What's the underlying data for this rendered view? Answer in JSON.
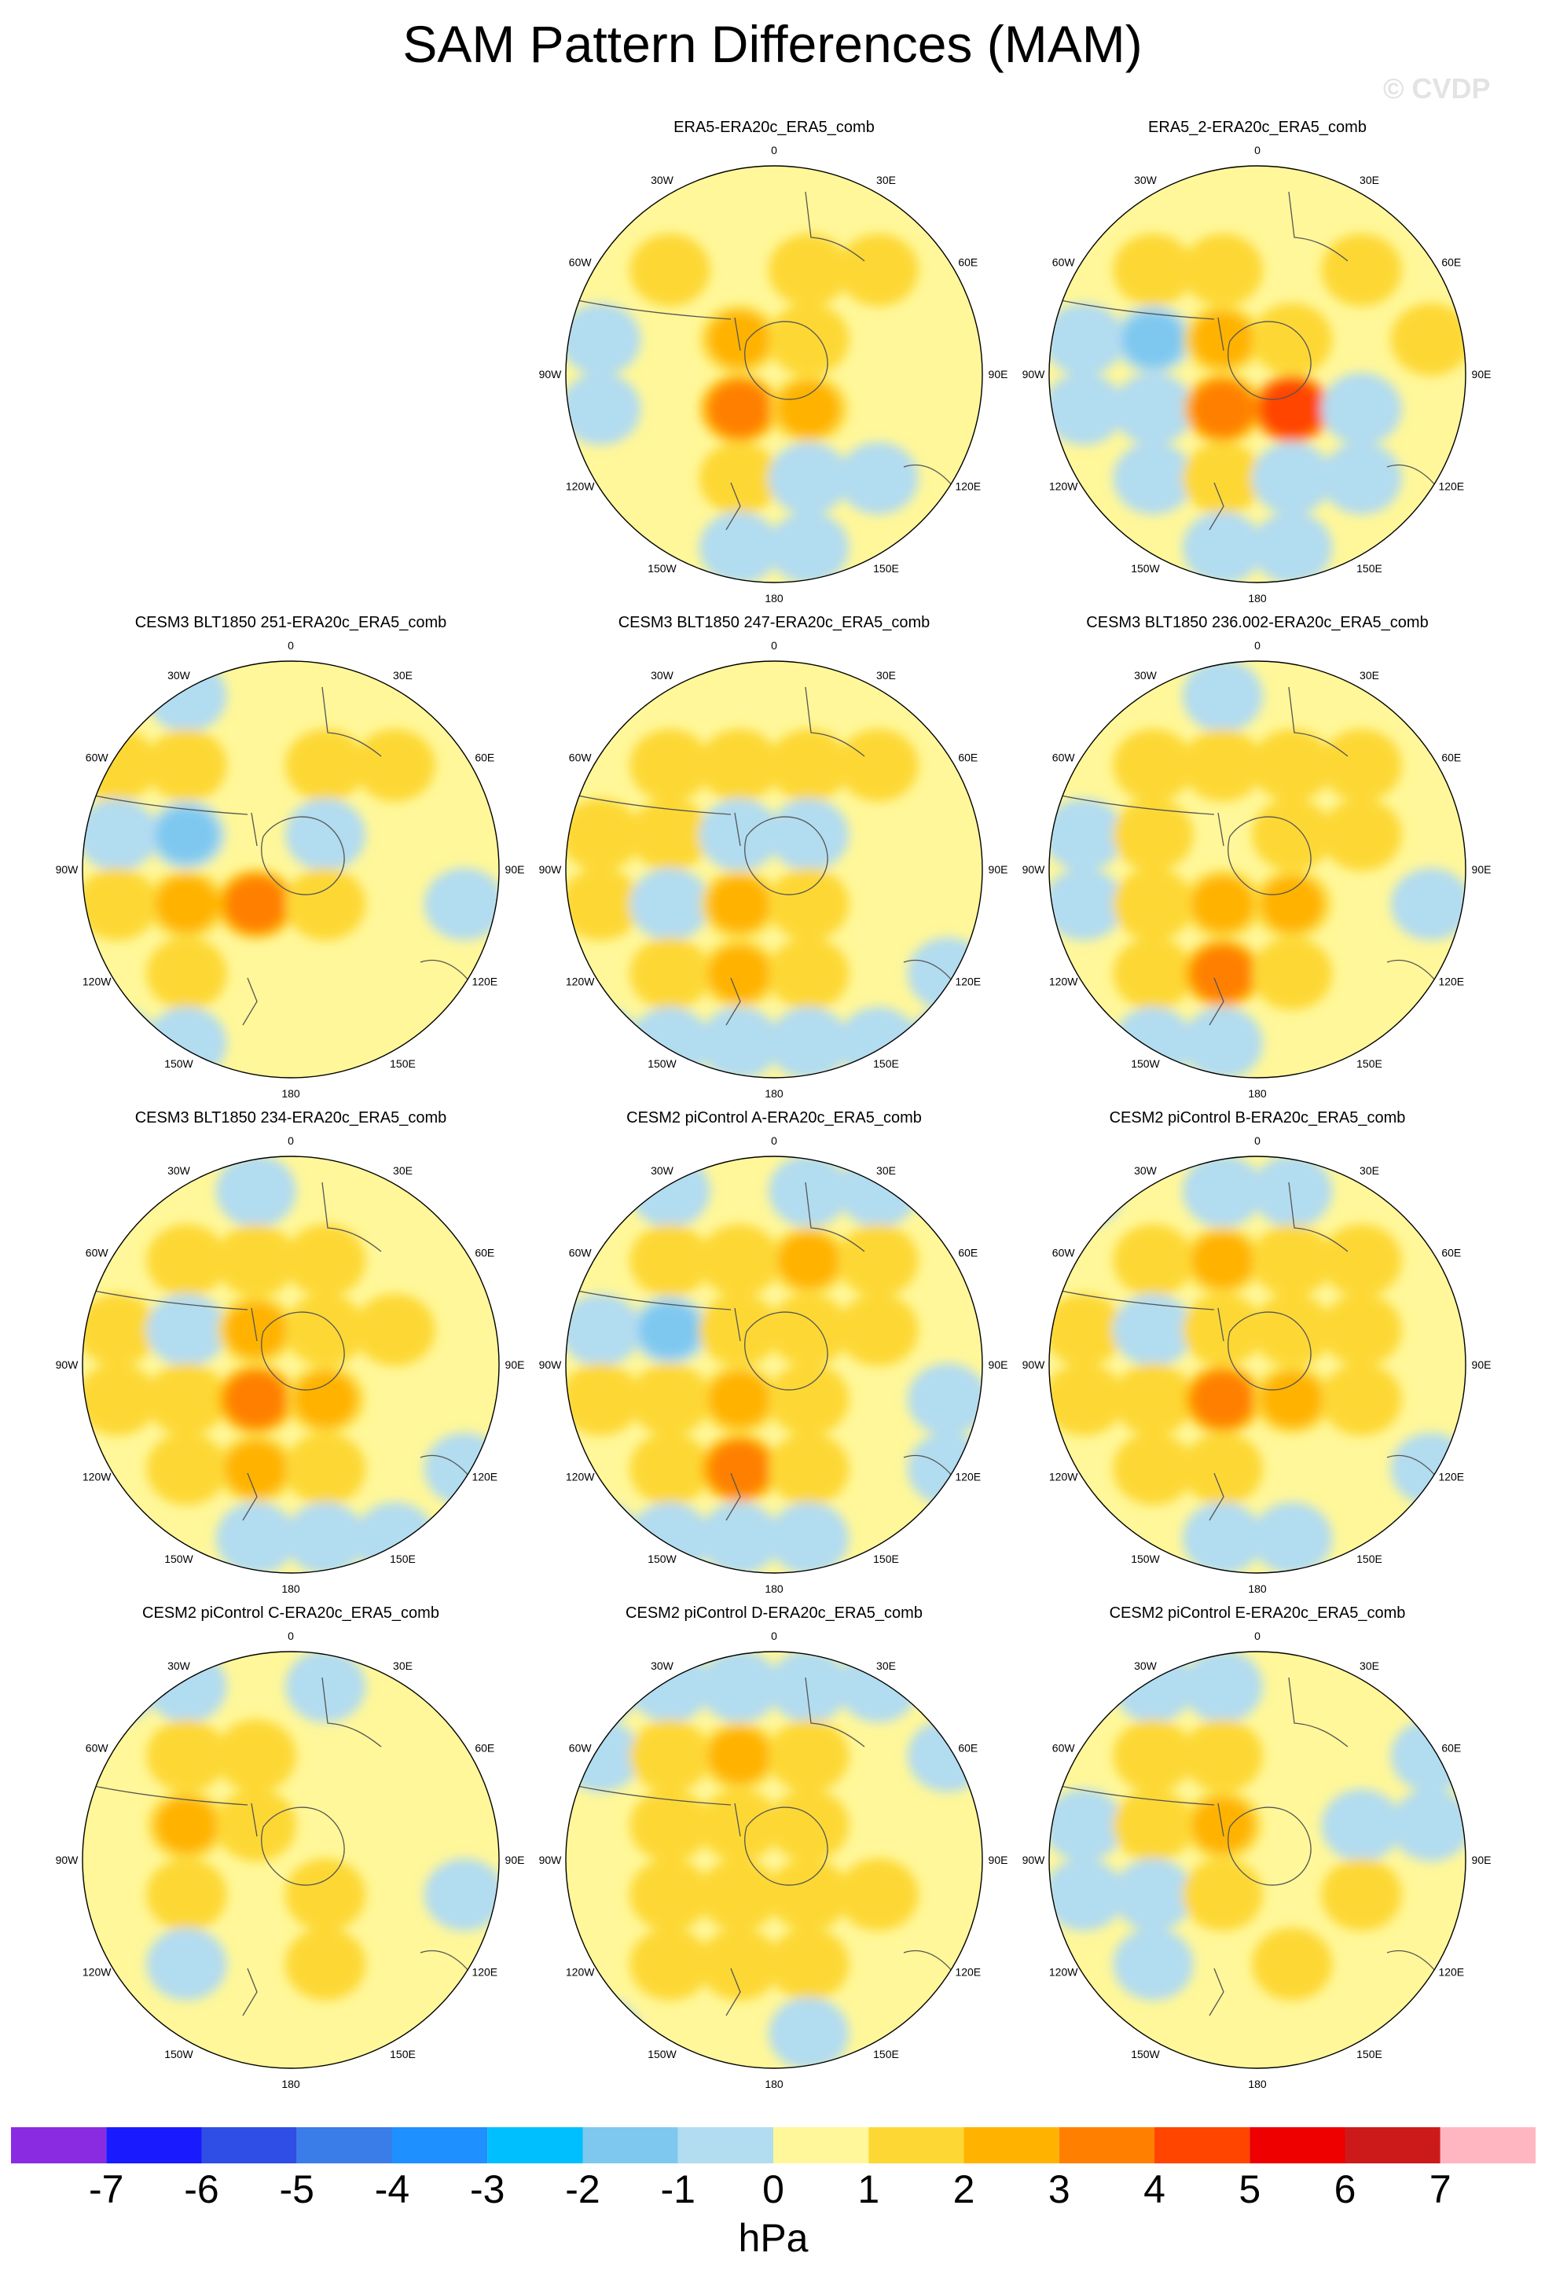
{
  "title": "SAM Pattern Differences (MAM)",
  "watermark": "© CVDP",
  "chart_data": {
    "type": "polar-contour-maps",
    "projection": "south polar stereographic",
    "units": "hPa",
    "longitude_labels": [
      "0",
      "30E",
      "60E",
      "90E",
      "120E",
      "150E",
      "180",
      "150W",
      "120W",
      "90W",
      "60W",
      "30W"
    ],
    "colorbar": {
      "label": "hPa",
      "ticks": [
        "-7",
        "-6",
        "-5",
        "-4",
        "-3",
        "-2",
        "-1",
        "0",
        "1",
        "2",
        "3",
        "4",
        "5",
        "6",
        "7"
      ],
      "colors": [
        "#8a2be2",
        "#1a1aff",
        "#2e4ee6",
        "#3a7de8",
        "#1e90ff",
        "#00bfff",
        "#7ec8f0",
        "#b2dcf0",
        "#fff799",
        "#fdd835",
        "#ffb300",
        "#ff8000",
        "#ff4500",
        "#ee0000",
        "#cc1a1a",
        "#ffb6c1"
      ]
    },
    "panels": [
      {
        "title": "ERA5-ERA20c_ERA5_comb",
        "cells": [
          [
            0,
            0,
            0,
            0,
            0,
            0
          ],
          [
            0,
            1,
            0,
            1,
            1,
            0
          ],
          [
            -1,
            0,
            2,
            1,
            0,
            0
          ],
          [
            -1,
            0,
            3,
            2,
            0,
            0
          ],
          [
            0,
            0,
            1,
            -1,
            -1,
            0
          ],
          [
            0,
            0,
            -1,
            -1,
            0,
            0
          ]
        ]
      },
      {
        "title": "ERA5_2-ERA20c_ERA5_comb",
        "cells": [
          [
            0,
            0,
            0,
            0,
            0,
            0
          ],
          [
            0,
            1,
            1,
            0,
            1,
            0
          ],
          [
            -1,
            -2,
            2,
            1,
            0,
            1
          ],
          [
            -1,
            -1,
            3,
            4,
            -1,
            0
          ],
          [
            0,
            -1,
            1,
            -1,
            -1,
            0
          ],
          [
            0,
            0,
            -1,
            -1,
            0,
            0
          ]
        ]
      },
      {
        "title": "CESM3 BLT1850 251-ERA20c_ERA5_comb",
        "cells": [
          [
            0,
            -1,
            0,
            0,
            0,
            0
          ],
          [
            1,
            1,
            0,
            1,
            1,
            0
          ],
          [
            -1,
            -2,
            0,
            -1,
            0,
            0
          ],
          [
            1,
            2,
            3,
            1,
            0,
            -1
          ],
          [
            0,
            1,
            0,
            0,
            0,
            0
          ],
          [
            -1,
            -1,
            0,
            0,
            0,
            0
          ]
        ]
      },
      {
        "title": "CESM3 BLT1850 247-ERA20c_ERA5_comb",
        "cells": [
          [
            0,
            0,
            0,
            0,
            0,
            0
          ],
          [
            0,
            1,
            1,
            1,
            1,
            0
          ],
          [
            1,
            1,
            -1,
            -1,
            0,
            0
          ],
          [
            1,
            -1,
            2,
            1,
            0,
            0
          ],
          [
            0,
            1,
            2,
            1,
            0,
            -1
          ],
          [
            -1,
            -1,
            -1,
            -1,
            -1,
            -1
          ]
        ]
      },
      {
        "title": "CESM3 BLT1850 236.002-ERA20c_ERA5_comb",
        "cells": [
          [
            0,
            0,
            -1,
            0,
            0,
            0
          ],
          [
            0,
            1,
            1,
            1,
            1,
            0
          ],
          [
            -1,
            1,
            0,
            1,
            1,
            0
          ],
          [
            -1,
            1,
            2,
            2,
            0,
            -1
          ],
          [
            0,
            1,
            3,
            1,
            0,
            0
          ],
          [
            0,
            -1,
            -1,
            0,
            0,
            0
          ]
        ]
      },
      {
        "title": "CESM3 BLT1850 234-ERA20c_ERA5_comb",
        "cells": [
          [
            0,
            0,
            -1,
            0,
            0,
            0
          ],
          [
            0,
            1,
            1,
            1,
            0,
            0
          ],
          [
            1,
            -1,
            2,
            1,
            1,
            0
          ],
          [
            1,
            1,
            3,
            2,
            0,
            0
          ],
          [
            0,
            1,
            2,
            1,
            0,
            -1
          ],
          [
            0,
            0,
            -1,
            -1,
            -1,
            0
          ]
        ]
      },
      {
        "title": "CESM2 piControl A-ERA20c_ERA5_comb",
        "cells": [
          [
            0,
            -1,
            0,
            -1,
            -1,
            0
          ],
          [
            0,
            1,
            1,
            2,
            1,
            0
          ],
          [
            -1,
            -2,
            1,
            1,
            1,
            0
          ],
          [
            1,
            1,
            2,
            1,
            0,
            -1
          ],
          [
            0,
            1,
            3,
            1,
            0,
            -1
          ],
          [
            -1,
            -1,
            -1,
            -1,
            0,
            0
          ]
        ]
      },
      {
        "title": "CESM2 piControl B-ERA20c_ERA5_comb",
        "cells": [
          [
            -1,
            0,
            -1,
            -1,
            0,
            0
          ],
          [
            0,
            1,
            2,
            1,
            1,
            0
          ],
          [
            1,
            -1,
            1,
            1,
            1,
            0
          ],
          [
            1,
            1,
            3,
            2,
            1,
            0
          ],
          [
            0,
            1,
            1,
            0,
            0,
            -1
          ],
          [
            0,
            0,
            -1,
            -1,
            0,
            0
          ]
        ]
      },
      {
        "title": "CESM2 piControl C-ERA20c_ERA5_comb",
        "cells": [
          [
            -1,
            -1,
            0,
            -1,
            0,
            0
          ],
          [
            0,
            1,
            1,
            0,
            0,
            0
          ],
          [
            0,
            2,
            1,
            0,
            0,
            0
          ],
          [
            0,
            1,
            0,
            1,
            0,
            -1
          ],
          [
            0,
            -1,
            0,
            1,
            0,
            0
          ],
          [
            0,
            0,
            0,
            0,
            0,
            0
          ]
        ]
      },
      {
        "title": "CESM2 piControl D-ERA20c_ERA5_comb",
        "cells": [
          [
            -1,
            -1,
            -1,
            -1,
            -1,
            0
          ],
          [
            -1,
            1,
            2,
            1,
            0,
            -1
          ],
          [
            0,
            1,
            1,
            1,
            0,
            0
          ],
          [
            0,
            1,
            1,
            1,
            1,
            0
          ],
          [
            0,
            1,
            1,
            1,
            0,
            0
          ],
          [
            -1,
            0,
            0,
            -1,
            0,
            0
          ]
        ]
      },
      {
        "title": "CESM2 piControl E-ERA20c_ERA5_comb",
        "cells": [
          [
            0,
            -1,
            -1,
            0,
            0,
            0
          ],
          [
            0,
            1,
            1,
            0,
            0,
            -1
          ],
          [
            -1,
            1,
            2,
            0,
            -1,
            -1
          ],
          [
            -1,
            -1,
            1,
            0,
            1,
            0
          ],
          [
            0,
            -1,
            0,
            1,
            0,
            0
          ],
          [
            0,
            0,
            0,
            0,
            0,
            0
          ]
        ]
      }
    ]
  }
}
